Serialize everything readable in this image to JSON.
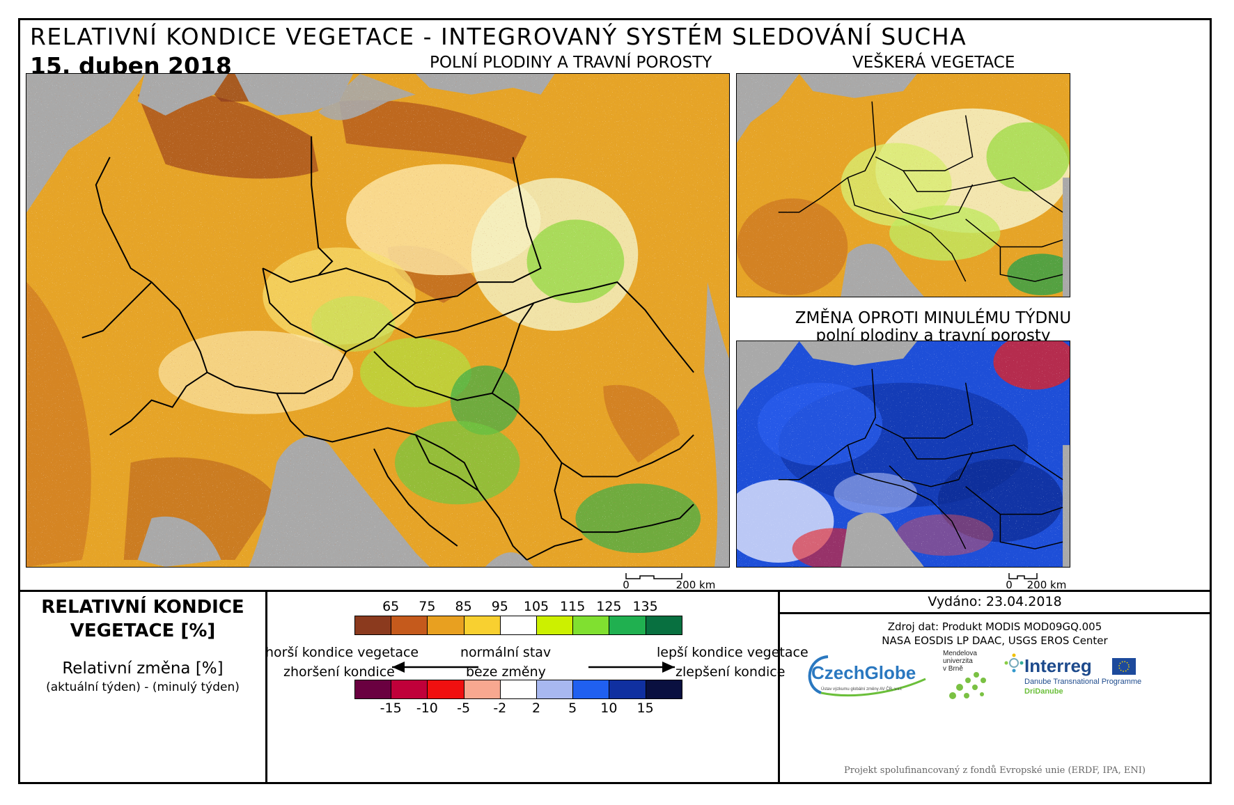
{
  "header": {
    "title": "RELATIVNÍ KONDICE VEGETACE - INTEGROVANÝ SYSTÉM SLEDOVÁNÍ SUCHA",
    "date": "15. duben 2018"
  },
  "panels": {
    "main_label": "POLNÍ PLODINY A TRAVNÍ POROSTY",
    "all_label": "VEŠKERÁ VEGETACE",
    "change_label_1": "ZMĚNA OPROTI MINULÉMU TÝDNU",
    "change_label_2": "polní plodiny a travní porosty"
  },
  "scalebar": {
    "start": "0",
    "end": "200 km"
  },
  "legend": {
    "title_1": "RELATIVNÍ KONDICE",
    "title_2": "VEGETACE [%]",
    "sub_1": "Relativní změna [%]",
    "sub_2": "(aktuální týden) - (minulý týden)",
    "condition_ticks": [
      "65",
      "75",
      "85",
      "95",
      "105",
      "115",
      "125",
      "135"
    ],
    "condition_colors": [
      "#8b3a1e",
      "#c55a1c",
      "#e8a020",
      "#f8d030",
      "#ffffff",
      "#ccf000",
      "#80e030",
      "#20b050",
      "#087040"
    ],
    "change_ticks": [
      "-15",
      "-10",
      "-5",
      "-2",
      "2",
      "5",
      "10",
      "15"
    ],
    "change_colors": [
      "#6a0040",
      "#c0003a",
      "#f01010",
      "#f8a890",
      "#ffffff",
      "#a8b8f0",
      "#2060f0",
      "#1030a0",
      "#0a1040"
    ],
    "worse_condition": "horší kondice vegetace",
    "normal_state": "normální stav",
    "better_condition": "lepší kondice vegetace",
    "deteriorated": "zhoršení kondice",
    "no_change": "beze změny",
    "improved": "zlepšení kondice"
  },
  "info": {
    "issued": "Vydáno: 23.04.2018",
    "source_1": "Zdroj dat: Produkt MODIS MOD09GQ.005",
    "source_2": "NASA EOSDIS LP DAAC, USGS EROS Center",
    "funding": "Projekt spolufinancovaný z fondů Evropské unie (ERDF, IPA, ENI)"
  },
  "logos": {
    "czechglobe": "CzechGlobe",
    "czechglobe_sub": "Ústav výzkumu globální změny AV ČR, v.v.i.",
    "mendel_1": "Mendelova",
    "mendel_2": "univerzita",
    "mendel_3": "v Brně",
    "interreg": "Interreg",
    "interreg_sub": "Danube Transnational Programme",
    "dridanube": "DriDanube"
  },
  "colors": {
    "sea": "#a9a9a9",
    "border": "#000000"
  }
}
